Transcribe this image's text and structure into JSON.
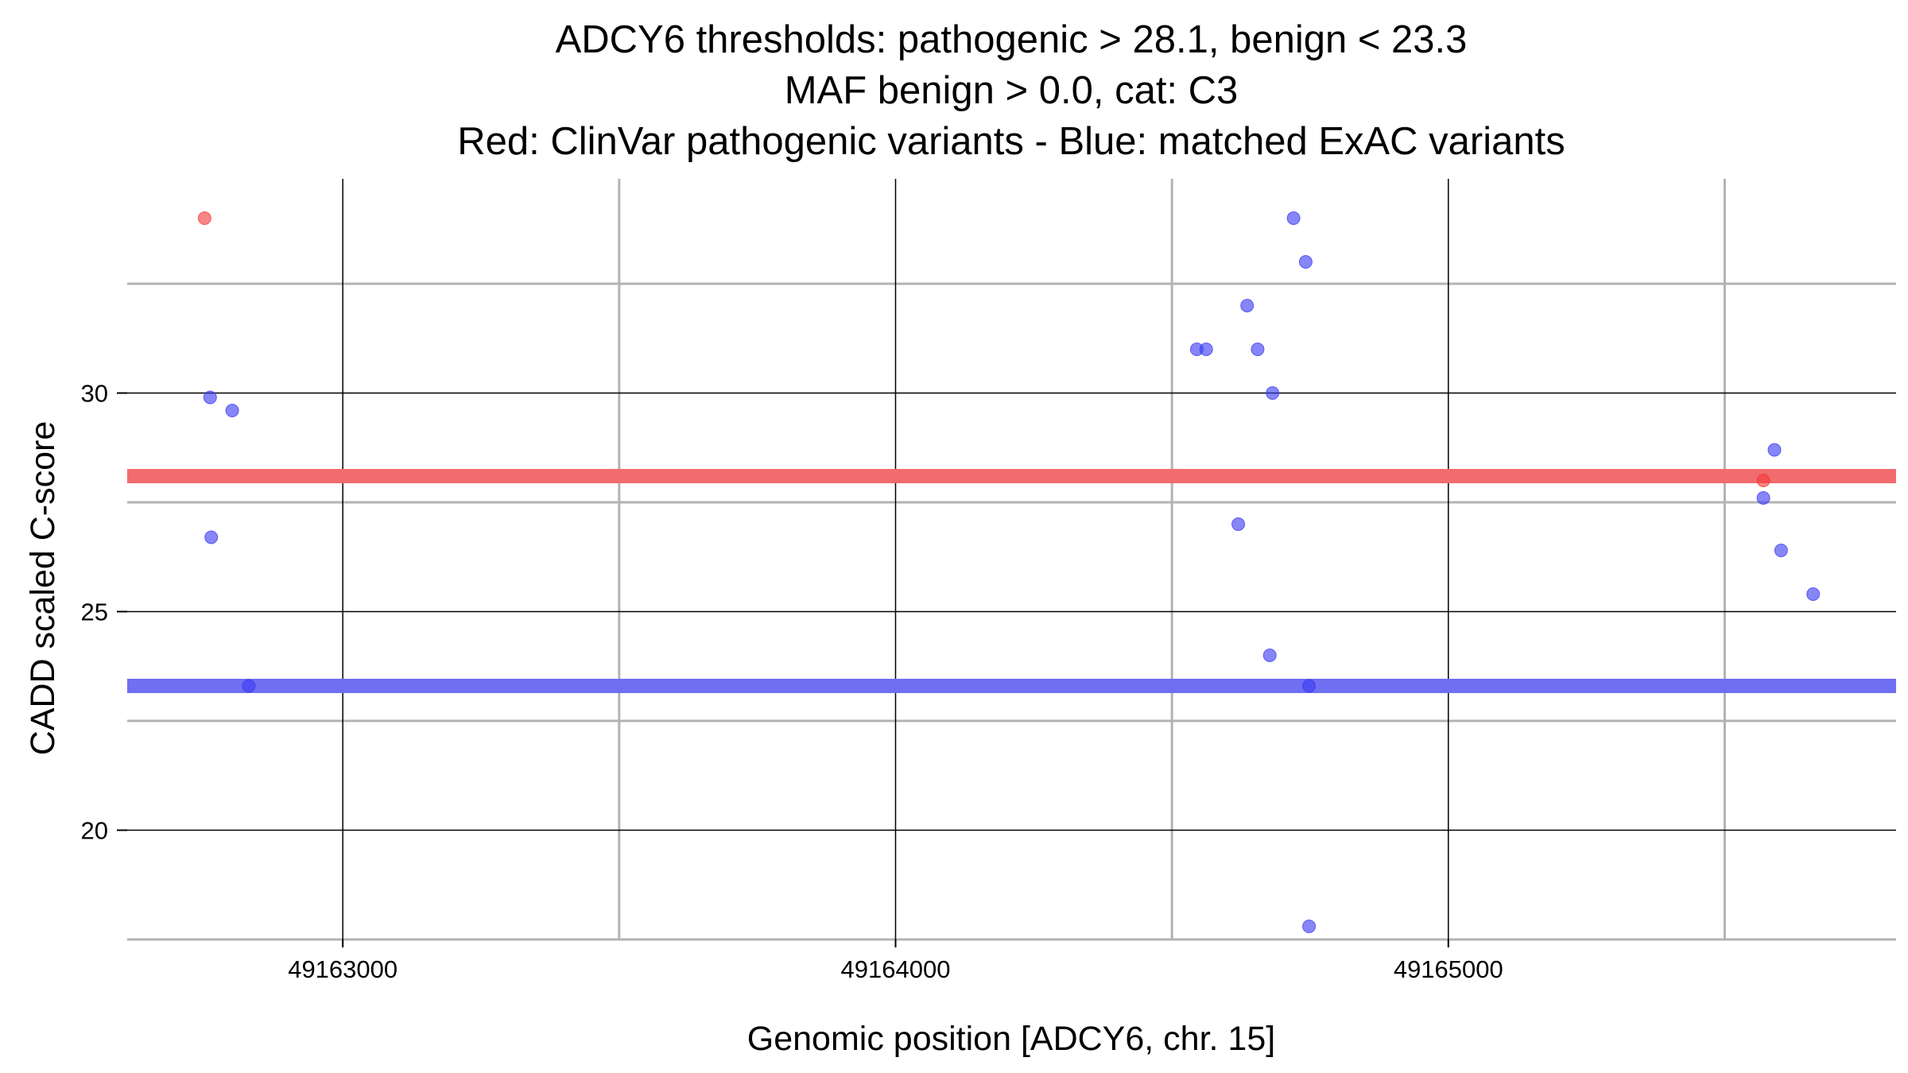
{
  "chart_data": {
    "type": "scatter",
    "title": [
      "ADCY6 thresholds: pathogenic > 28.1, benign < 23.3",
      "MAF benign > 0.0, cat: C3",
      "Red: ClinVar pathogenic variants - Blue: matched ExAC variants"
    ],
    "xlabel": "Genomic position [ADCY6, chr. 15]",
    "ylabel": "CADD scaled C-score",
    "xlim": [
      49162610,
      49165810
    ],
    "ylim": [
      17.5,
      34.9
    ],
    "x_ticks": [
      49163000,
      49164000,
      49165000
    ],
    "x_tick_labels": [
      "49163000",
      "49164000",
      "49165000"
    ],
    "x_minor_grid": [
      49163500,
      49164500,
      49165500
    ],
    "y_ticks": [
      20,
      25,
      30
    ],
    "y_tick_labels": [
      "20",
      "25",
      "30"
    ],
    "y_minor_grid": [
      17.5,
      22.5,
      27.5,
      32.5
    ],
    "thresholds": [
      {
        "name": "pathogenic",
        "value": 28.1,
        "color": "#f26b6f"
      },
      {
        "name": "benign",
        "value": 23.3,
        "color": "#6f6ff2"
      }
    ],
    "series": [
      {
        "name": "ClinVar pathogenic variants",
        "color": "#f23b3b",
        "points": [
          {
            "x": 49162750,
            "y": 34.0
          },
          {
            "x": 49165570,
            "y": 28.0
          }
        ]
      },
      {
        "name": "matched ExAC variants",
        "color": "#3b3bf2",
        "points": [
          {
            "x": 49162760,
            "y": 29.9
          },
          {
            "x": 49162800,
            "y": 29.6
          },
          {
            "x": 49162762,
            "y": 26.7
          },
          {
            "x": 49162830,
            "y": 23.3
          },
          {
            "x": 49164545,
            "y": 31.0
          },
          {
            "x": 49164562,
            "y": 31.0
          },
          {
            "x": 49164636,
            "y": 32.0
          },
          {
            "x": 49164655,
            "y": 31.0
          },
          {
            "x": 49164682,
            "y": 30.0
          },
          {
            "x": 49164620,
            "y": 27.0
          },
          {
            "x": 49164720,
            "y": 34.0
          },
          {
            "x": 49164742,
            "y": 33.0
          },
          {
            "x": 49164677,
            "y": 24.0
          },
          {
            "x": 49164748,
            "y": 23.3
          },
          {
            "x": 49164748,
            "y": 17.8
          },
          {
            "x": 49165590,
            "y": 28.7
          },
          {
            "x": 49165570,
            "y": 27.6
          },
          {
            "x": 49165602,
            "y": 26.4
          },
          {
            "x": 49165660,
            "y": 25.4
          }
        ]
      }
    ]
  }
}
